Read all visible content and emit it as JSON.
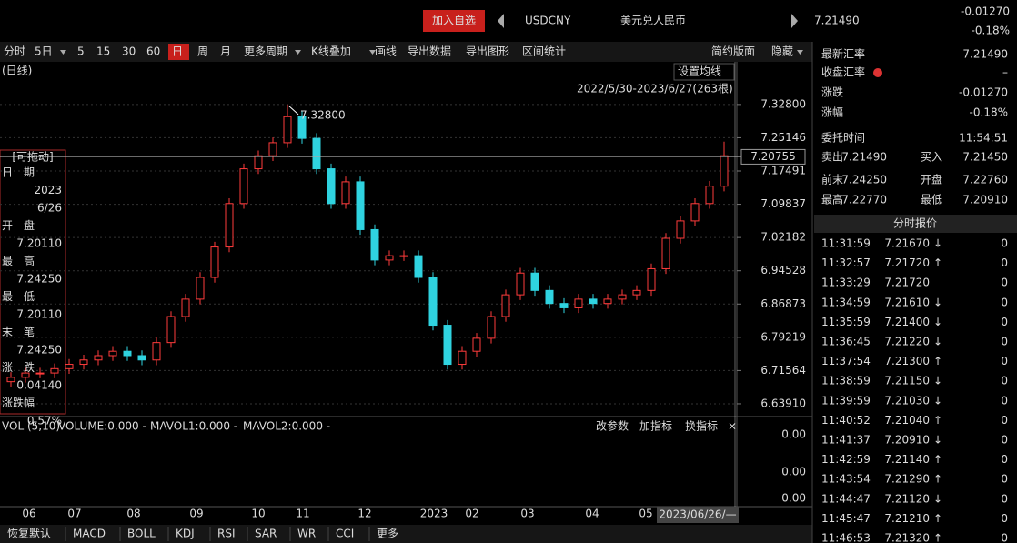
{
  "header": {
    "button": "加入自选",
    "symbol": "USDCNY",
    "name": "美元兑人民币",
    "price": "7.21490",
    "change": "-0.01270",
    "change_pct": "-0.18%"
  },
  "toolbar": {
    "items": [
      "分时",
      "5日",
      "5",
      "15",
      "30",
      "60",
      "日",
      "周",
      "月",
      "更多周期",
      "K线叠加",
      "画线",
      "导出数据",
      "导出图形",
      "区间统计"
    ],
    "right_items": [
      "简约版面",
      "隐藏"
    ]
  },
  "chart_data": {
    "type": "candlestick",
    "period_label": "(日线)",
    "ma_button": "设置均线",
    "range_label": "2022/5/30-2023/6/27(263根)",
    "max_label": "7.32800",
    "max_index": 19,
    "cursor_price": {
      "value": 7.20755,
      "label": "7.20755"
    },
    "cursor_date": "2023/06/26/—",
    "up_color": "#ff3b3b",
    "down_color": "#2fd3e0",
    "grid": true,
    "ylim": [
      6.616,
      7.401
    ],
    "yticks": [
      {
        "value": 7.328,
        "label": "7.32800"
      },
      {
        "value": 7.25146,
        "label": "7.25146"
      },
      {
        "value": 7.17491,
        "label": "7.17491"
      },
      {
        "value": 7.09837,
        "label": "7.09837"
      },
      {
        "value": 7.02182,
        "label": "7.02182"
      },
      {
        "value": 6.94528,
        "label": "6.94528"
      },
      {
        "value": 6.86873,
        "label": "6.86873"
      },
      {
        "value": 6.79219,
        "label": "6.79219"
      },
      {
        "value": 6.71564,
        "label": "6.71564"
      },
      {
        "value": 6.6391,
        "label": "6.63910"
      }
    ],
    "x_labels": [
      "06",
      "07",
      "08",
      "09",
      "10",
      "11",
      "12",
      "2023",
      "02",
      "03",
      "04",
      "05"
    ],
    "open": [
      6.69,
      6.7,
      6.71,
      6.71,
      6.72,
      6.73,
      6.74,
      6.75,
      6.76,
      6.75,
      6.74,
      6.78,
      6.84,
      6.88,
      6.93,
      7.0,
      7.1,
      7.18,
      7.21,
      7.24,
      7.3,
      7.25,
      7.18,
      7.1,
      7.15,
      7.04,
      6.97,
      6.98,
      6.98,
      6.93,
      6.82,
      6.73,
      6.76,
      6.79,
      6.84,
      6.89,
      6.94,
      6.9,
      6.87,
      6.86,
      6.88,
      6.87,
      6.88,
      6.89,
      6.9,
      6.95,
      7.02,
      7.06,
      7.1,
      7.14
    ],
    "high": [
      6.712,
      6.722,
      6.722,
      6.732,
      6.742,
      6.752,
      6.762,
      6.772,
      6.772,
      6.762,
      6.792,
      6.852,
      6.892,
      6.942,
      7.012,
      7.112,
      7.192,
      7.222,
      7.252,
      7.328,
      7.312,
      7.262,
      7.192,
      7.162,
      7.162,
      7.052,
      6.992,
      6.992,
      6.992,
      6.942,
      6.832,
      6.772,
      6.802,
      6.852,
      6.902,
      6.952,
      6.952,
      6.912,
      6.882,
      6.892,
      6.892,
      6.892,
      6.902,
      6.912,
      6.962,
      7.032,
      7.072,
      7.112,
      7.152,
      7.2425
    ],
    "low": [
      6.678,
      6.688,
      6.698,
      6.698,
      6.708,
      6.718,
      6.728,
      6.738,
      6.738,
      6.728,
      6.728,
      6.768,
      6.828,
      6.868,
      6.918,
      6.988,
      7.088,
      7.168,
      7.198,
      7.228,
      7.238,
      7.168,
      7.088,
      7.088,
      7.028,
      6.958,
      6.958,
      6.968,
      6.918,
      6.808,
      6.718,
      6.718,
      6.748,
      6.778,
      6.828,
      6.878,
      6.888,
      6.858,
      6.848,
      6.848,
      6.858,
      6.858,
      6.868,
      6.878,
      6.888,
      6.938,
      7.008,
      7.048,
      7.088,
      7.128
    ],
    "close": [
      6.7,
      6.71,
      6.71,
      6.72,
      6.73,
      6.74,
      6.75,
      6.76,
      6.75,
      6.74,
      6.78,
      6.84,
      6.88,
      6.93,
      7.0,
      7.1,
      7.18,
      7.21,
      7.24,
      7.3,
      7.25,
      7.18,
      7.1,
      7.15,
      7.04,
      6.97,
      6.98,
      6.98,
      6.93,
      6.82,
      6.73,
      6.76,
      6.79,
      6.84,
      6.89,
      6.94,
      6.9,
      6.87,
      6.86,
      6.88,
      6.87,
      6.88,
      6.89,
      6.9,
      6.95,
      7.02,
      7.06,
      7.1,
      7.14,
      7.21
    ]
  },
  "info_box": {
    "title": "[可拖动]",
    "rows": [
      [
        "日　期",
        "2023",
        "6/26"
      ],
      [
        "开　盘",
        "7.20110"
      ],
      [
        "最　高",
        "7.24250"
      ],
      [
        "最　低",
        "7.20110"
      ],
      [
        "末　笔",
        "7.24250"
      ],
      [
        "涨　跌",
        "0.04140"
      ],
      [
        "涨跌幅",
        "0.57%"
      ]
    ]
  },
  "volume": {
    "header": [
      "VOL (5,10)",
      "VOLUME:0.000 -",
      "MAVOL1:0.000 -",
      "MAVOL2:0.000 -"
    ],
    "buttons": [
      "改参数",
      "加指标",
      "换指标"
    ],
    "axis_labels": [
      "0.00",
      "0.00",
      "0.00"
    ]
  },
  "indicator_tabs": [
    "恢复默认",
    "MACD",
    "BOLL",
    "KDJ",
    "RSI",
    "SAR",
    "WR",
    "CCI",
    "更多"
  ],
  "quote": {
    "rows": [
      [
        "最新汇率",
        "7.21490"
      ],
      [
        "收盘汇率",
        "–"
      ],
      [
        "涨跌",
        "-0.01270"
      ],
      [
        "涨幅",
        "-0.18%"
      ],
      [
        "委托时间",
        "11:54:51"
      ]
    ],
    "pairs": [
      [
        "卖出",
        "7.21490",
        "买入",
        "7.21450"
      ],
      [
        "前末",
        "7.24250",
        "开盘",
        "7.22760"
      ],
      [
        "最高",
        "7.22770",
        "最低",
        "7.20910"
      ]
    ],
    "ticks_title": "分时报价",
    "ticks": [
      [
        "11:31:59",
        "7.21670",
        "↓",
        "0"
      ],
      [
        "11:32:57",
        "7.21720",
        "↑",
        "0"
      ],
      [
        "11:33:29",
        "7.21720",
        "",
        "0"
      ],
      [
        "11:34:59",
        "7.21610",
        "↓",
        "0"
      ],
      [
        "11:35:59",
        "7.21400",
        "↓",
        "0"
      ],
      [
        "11:36:45",
        "7.21220",
        "↓",
        "0"
      ],
      [
        "11:37:54",
        "7.21300",
        "↑",
        "0"
      ],
      [
        "11:38:59",
        "7.21150",
        "↓",
        "0"
      ],
      [
        "11:39:59",
        "7.21030",
        "↓",
        "0"
      ],
      [
        "11:40:52",
        "7.21040",
        "↑",
        "0"
      ],
      [
        "11:41:37",
        "7.20910",
        "↓",
        "0"
      ],
      [
        "11:42:59",
        "7.21140",
        "↑",
        "0"
      ],
      [
        "11:43:54",
        "7.21290",
        "↑",
        "0"
      ],
      [
        "11:44:47",
        "7.21120",
        "↓",
        "0"
      ],
      [
        "11:45:47",
        "7.21210",
        "↑",
        "0"
      ],
      [
        "11:46:53",
        "7.21320",
        "↑",
        "0"
      ]
    ]
  }
}
